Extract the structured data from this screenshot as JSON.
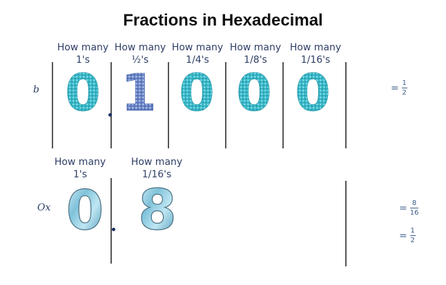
{
  "title": "Fractions in Hexadecimal",
  "binary": {
    "prefix": "b",
    "headers": [
      {
        "top": "How many",
        "bottom": "1's"
      },
      {
        "top": "How many",
        "bottom": "½'s"
      },
      {
        "top": "How many",
        "bottom": "1/4's"
      },
      {
        "top": "How many",
        "bottom": "1/8's"
      },
      {
        "top": "How many",
        "bottom": "1/16's"
      }
    ],
    "digits": [
      "0",
      "1",
      "0",
      "0",
      "0"
    ],
    "result": {
      "eq": "=",
      "num": "1",
      "den": "2"
    }
  },
  "hex": {
    "prefix": "Ox",
    "headers": [
      {
        "top": "How many",
        "bottom": "1's"
      },
      {
        "top": "How many",
        "bottom": "1/16's"
      }
    ],
    "digits": [
      "0",
      "8"
    ],
    "results": [
      {
        "eq": "=",
        "num": "8",
        "den": "16"
      },
      {
        "eq": "=",
        "num": "1",
        "den": "2"
      }
    ]
  },
  "colors": {
    "glitter_teal": "#39b7c7",
    "glitter_blue": "#6a86c8",
    "crystal": "#8fc9de",
    "ink": "#2f3f66"
  }
}
